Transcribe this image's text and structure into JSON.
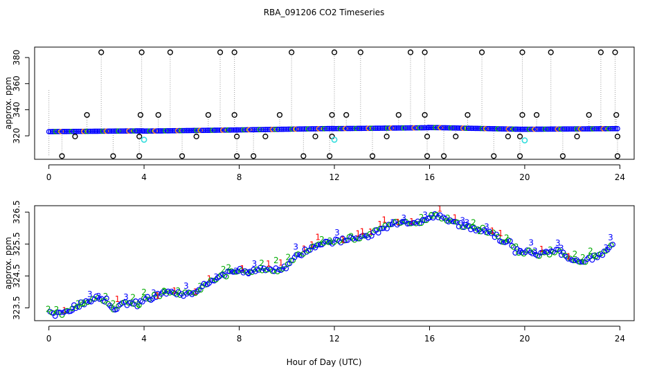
{
  "page_title": "RBA_091206  CO2 Timeseries",
  "colors": {
    "black": "#000000",
    "grey": "#999999",
    "blue": "#0000ff",
    "green": "#00aa00",
    "red": "#ff0000",
    "cyan": "#33dddd"
  },
  "chart_data": [
    {
      "type": "scatter",
      "title": "RBA_091206  CO2 Timeseries",
      "xlabel": "",
      "ylabel": "approx. ppm",
      "xlim": [
        -0.6,
        24.6
      ],
      "ylim": [
        302,
        388
      ],
      "xticks": [
        0,
        4,
        8,
        12,
        16,
        20,
        24
      ],
      "yticks": [
        320,
        340,
        360,
        380
      ],
      "baseline_segments": [
        {
          "x0": 0.0,
          "x1": 3.95,
          "y0": 323.2,
          "y1": 323.8
        },
        {
          "x0": 3.95,
          "x1": 7.9,
          "y0": 323.6,
          "y1": 324.5
        },
        {
          "x0": 7.9,
          "x1": 11.95,
          "y0": 324.5,
          "y1": 325.6
        },
        {
          "x0": 11.95,
          "x1": 15.95,
          "y0": 325.5,
          "y1": 326.2
        },
        {
          "x0": 15.95,
          "x1": 19.9,
          "y0": 326.4,
          "y1": 325.0
        },
        {
          "x0": 19.9,
          "x1": 23.9,
          "y0": 325.0,
          "y1": 325.5
        }
      ],
      "high_points": [
        {
          "x": 2.2,
          "y": 384
        },
        {
          "x": 3.9,
          "y": 384
        },
        {
          "x": 5.1,
          "y": 384
        },
        {
          "x": 7.2,
          "y": 384
        },
        {
          "x": 7.8,
          "y": 384
        },
        {
          "x": 10.2,
          "y": 384
        },
        {
          "x": 12.0,
          "y": 384
        },
        {
          "x": 13.1,
          "y": 384
        },
        {
          "x": 15.2,
          "y": 384
        },
        {
          "x": 15.8,
          "y": 384
        },
        {
          "x": 18.2,
          "y": 384
        },
        {
          "x": 19.9,
          "y": 384
        },
        {
          "x": 21.1,
          "y": 384
        },
        {
          "x": 23.2,
          "y": 384
        },
        {
          "x": 23.8,
          "y": 384
        }
      ],
      "mid_points": [
        {
          "x": 1.6,
          "y": 336
        },
        {
          "x": 3.85,
          "y": 336
        },
        {
          "x": 4.6,
          "y": 336
        },
        {
          "x": 6.7,
          "y": 336
        },
        {
          "x": 7.8,
          "y": 336
        },
        {
          "x": 9.7,
          "y": 336
        },
        {
          "x": 11.9,
          "y": 336
        },
        {
          "x": 12.5,
          "y": 336
        },
        {
          "x": 14.7,
          "y": 336
        },
        {
          "x": 15.8,
          "y": 336
        },
        {
          "x": 17.6,
          "y": 336
        },
        {
          "x": 19.9,
          "y": 336
        },
        {
          "x": 20.5,
          "y": 336
        },
        {
          "x": 22.7,
          "y": 336
        },
        {
          "x": 23.85,
          "y": 336
        }
      ],
      "low_points": [
        {
          "x": 1.1,
          "y": 319.5
        },
        {
          "x": 3.8,
          "y": 319.5
        },
        {
          "x": 6.2,
          "y": 319.5
        },
        {
          "x": 7.9,
          "y": 319.5
        },
        {
          "x": 9.1,
          "y": 319.5
        },
        {
          "x": 11.2,
          "y": 319.5
        },
        {
          "x": 11.9,
          "y": 319.5
        },
        {
          "x": 14.2,
          "y": 319.5
        },
        {
          "x": 15.9,
          "y": 319.5
        },
        {
          "x": 17.1,
          "y": 319.5
        },
        {
          "x": 19.3,
          "y": 319.5
        },
        {
          "x": 19.8,
          "y": 319.5
        },
        {
          "x": 22.2,
          "y": 319.5
        },
        {
          "x": 23.9,
          "y": 319.5
        }
      ],
      "bottom_points": [
        {
          "x": 0.55,
          "y": 304.5
        },
        {
          "x": 2.7,
          "y": 304.5
        },
        {
          "x": 3.8,
          "y": 304.5
        },
        {
          "x": 5.6,
          "y": 304.5
        },
        {
          "x": 7.9,
          "y": 304.5
        },
        {
          "x": 8.6,
          "y": 304.5
        },
        {
          "x": 10.7,
          "y": 304.5
        },
        {
          "x": 11.8,
          "y": 304.5
        },
        {
          "x": 13.6,
          "y": 304.5
        },
        {
          "x": 15.9,
          "y": 304.5
        },
        {
          "x": 16.6,
          "y": 304.5
        },
        {
          "x": 18.7,
          "y": 304.5
        },
        {
          "x": 19.8,
          "y": 304.5
        },
        {
          "x": 21.6,
          "y": 304.5
        },
        {
          "x": 23.9,
          "y": 304.5
        }
      ],
      "cyan_points": [
        {
          "x": 4.0,
          "y": 317
        },
        {
          "x": 12.0,
          "y": 317
        },
        {
          "x": 20.0,
          "y": 316.5
        }
      ],
      "left_tail": {
        "x": 0.0,
        "y_top": 355,
        "y_bottom": 304
      }
    },
    {
      "type": "scatter",
      "title": "",
      "xlabel": "Hour of Day (UTC)",
      "ylabel": "approx. ppm",
      "xlim": [
        -0.6,
        24.6
      ],
      "ylim": [
        323.1,
        326.7
      ],
      "xticks": [
        0,
        4,
        8,
        12,
        16,
        20,
        24
      ],
      "yticks": [
        323.5,
        324.5,
        325.5,
        326.5
      ],
      "series_labels": [
        "1",
        "2",
        "3"
      ],
      "series_colors": [
        "#ff0000",
        "#00aa00",
        "#0000ff"
      ],
      "trend": [
        [
          0.0,
          323.4
        ],
        [
          0.3,
          323.3
        ],
        [
          0.6,
          323.35
        ],
        [
          1.0,
          323.5
        ],
        [
          1.5,
          323.65
        ],
        [
          2.0,
          323.85
        ],
        [
          2.4,
          323.75
        ],
        [
          2.7,
          323.45
        ],
        [
          3.0,
          323.55
        ],
        [
          3.4,
          323.7
        ],
        [
          3.8,
          323.6
        ],
        [
          4.0,
          323.75
        ],
        [
          4.4,
          323.85
        ],
        [
          4.8,
          323.95
        ],
        [
          5.1,
          324.05
        ],
        [
          5.6,
          323.95
        ],
        [
          6.0,
          323.95
        ],
        [
          6.4,
          324.15
        ],
        [
          6.8,
          324.3
        ],
        [
          7.2,
          324.45
        ],
        [
          7.6,
          324.6
        ],
        [
          7.9,
          324.65
        ],
        [
          8.4,
          324.65
        ],
        [
          8.8,
          324.7
        ],
        [
          9.2,
          324.75
        ],
        [
          9.6,
          324.7
        ],
        [
          9.9,
          324.75
        ],
        [
          10.2,
          325.0
        ],
        [
          10.6,
          325.2
        ],
        [
          11.0,
          325.35
        ],
        [
          11.4,
          325.5
        ],
        [
          11.8,
          325.55
        ],
        [
          12.2,
          325.6
        ],
        [
          12.6,
          325.65
        ],
        [
          13.0,
          325.7
        ],
        [
          13.5,
          325.8
        ],
        [
          14.0,
          325.95
        ],
        [
          14.4,
          326.15
        ],
        [
          14.8,
          326.2
        ],
        [
          15.2,
          326.2
        ],
        [
          15.6,
          326.15
        ],
        [
          15.9,
          326.3
        ],
        [
          16.2,
          326.4
        ],
        [
          16.6,
          326.35
        ],
        [
          17.0,
          326.2
        ],
        [
          17.4,
          326.05
        ],
        [
          17.8,
          326.0
        ],
        [
          18.2,
          325.95
        ],
        [
          18.6,
          325.85
        ],
        [
          19.0,
          325.65
        ],
        [
          19.4,
          325.6
        ],
        [
          19.6,
          325.3
        ],
        [
          19.9,
          325.2
        ],
        [
          20.2,
          325.3
        ],
        [
          20.6,
          325.15
        ],
        [
          21.0,
          325.2
        ],
        [
          21.4,
          325.3
        ],
        [
          21.8,
          325.1
        ],
        [
          22.2,
          325.0
        ],
        [
          22.6,
          325.0
        ],
        [
          23.0,
          325.1
        ],
        [
          23.4,
          325.25
        ],
        [
          23.7,
          325.45
        ]
      ]
    }
  ]
}
